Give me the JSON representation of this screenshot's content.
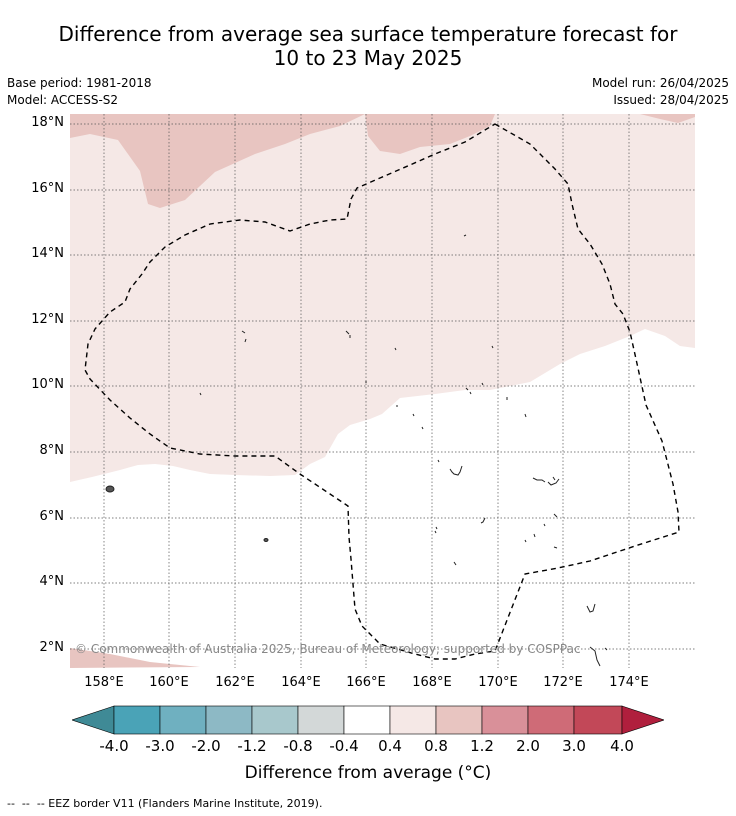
{
  "title": {
    "line1": "Difference from average sea surface temperature forecast for",
    "line2": "10 to 23 May 2025"
  },
  "meta": {
    "base_period": "Base period: 1981-2018",
    "model": "Model: ACCESS-S2",
    "model_run": "Model run: 26/04/2025",
    "issued": "Issued: 28/04/2025"
  },
  "map": {
    "lat_labels": [
      "18°N",
      "16°N",
      "14°N",
      "12°N",
      "10°N",
      "8°N",
      "6°N",
      "4°N",
      "2°N"
    ],
    "lon_labels": [
      "158°E",
      "160°E",
      "162°E",
      "164°E",
      "166°E",
      "168°E",
      "170°E",
      "172°E",
      "174°E"
    ],
    "copyright": "© Commonwealth of Australia 2025, Bureau of Meteorology; supported by COSPPac",
    "colors": {
      "band_0_4_to_0_8": "#f5e8e6",
      "band_0_8_to_1_2": "#e8c5c1",
      "coast": "#222222",
      "eez_line": "#000000",
      "grid": "#555555"
    }
  },
  "colorbar": {
    "tick_labels": [
      "-4.0",
      "-3.0",
      "-2.0",
      "-1.2",
      "-0.8",
      "-0.4",
      "0.4",
      "0.8",
      "1.2",
      "2.0",
      "3.0",
      "4.0"
    ],
    "colors": [
      "#3f8a96",
      "#4aa3b7",
      "#6fb0c0",
      "#8db9c5",
      "#a8c8cc",
      "#d3d8d8",
      "#ffffff",
      "#f5e8e6",
      "#e8c5c1",
      "#d99099",
      "#cf6b77",
      "#c24858",
      "#b01f3d"
    ],
    "title": "Difference from average (°C)"
  },
  "legend_note": "--  --  -- EEZ border V11 (Flanders Marine Institute, 2019)."
}
